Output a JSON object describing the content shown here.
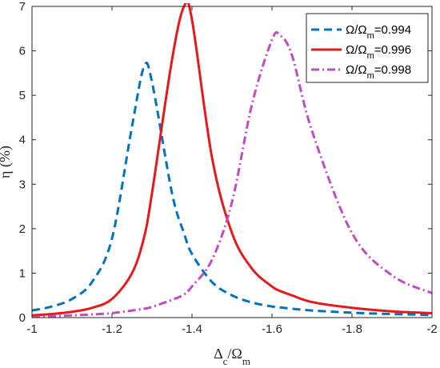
{
  "chart_data": {
    "type": "line",
    "xlabel": "Δc/Ωm",
    "xlabel_parts": {
      "main": "Δ",
      "sub1": "c",
      "mid": "/Ω",
      "sub2": "m"
    },
    "ylabel": "η (%)",
    "xlim": [
      -1,
      -2
    ],
    "ylim": [
      0,
      7
    ],
    "x_reversed": true,
    "xticks": [
      -1,
      -1.2,
      -1.4,
      -1.6,
      -1.8,
      -2
    ],
    "xtick_labels": [
      "-1",
      "-1.2",
      "-1.4",
      "-1.6",
      "-1.8",
      "-2"
    ],
    "yticks": [
      0,
      1,
      2,
      3,
      4,
      5,
      6,
      7
    ],
    "ytick_labels": [
      "0",
      "1",
      "2",
      "3",
      "4",
      "5",
      "6",
      "7"
    ],
    "grid": false,
    "legend_position": "top-right",
    "x": [
      -1.0,
      -1.05,
      -1.1,
      -1.15,
      -1.2,
      -1.25,
      -1.28,
      -1.3,
      -1.35,
      -1.38,
      -1.4,
      -1.45,
      -1.5,
      -1.55,
      -1.6,
      -1.62,
      -1.65,
      -1.7,
      -1.8,
      -1.9,
      -2.0
    ],
    "series": [
      {
        "name": "Ω/Ωm=0.994",
        "name_parts": {
          "a": "Ω/Ω",
          "sub": "m",
          "b": "=0.994"
        },
        "color": "#0072BD",
        "style": "dashed",
        "values": [
          0.16,
          0.25,
          0.42,
          0.8,
          1.78,
          4.3,
          5.64,
          5.3,
          2.8,
          1.9,
          1.43,
          0.8,
          0.5,
          0.34,
          0.25,
          0.23,
          0.2,
          0.16,
          0.11,
          0.08,
          0.06
        ]
      },
      {
        "name": "Ω/Ωm=0.996",
        "name_parts": {
          "a": "Ω/Ω",
          "sub": "m",
          "b": "=0.996"
        },
        "color": "#E41A1C",
        "style": "solid",
        "values": [
          0.05,
          0.08,
          0.13,
          0.22,
          0.42,
          1.0,
          1.8,
          2.8,
          5.8,
          7.0,
          6.7,
          3.6,
          1.9,
          1.1,
          0.7,
          0.6,
          0.5,
          0.35,
          0.22,
          0.14,
          0.1
        ]
      },
      {
        "name": "Ω/Ωm=0.998",
        "name_parts": {
          "a": "Ω/Ω",
          "sub": "m",
          "b": "=0.998"
        },
        "color": "#BF4DBF",
        "style": "dashdot",
        "values": [
          0.01,
          0.03,
          0.05,
          0.07,
          0.1,
          0.16,
          0.2,
          0.24,
          0.4,
          0.52,
          0.7,
          1.3,
          2.6,
          4.8,
          6.25,
          6.35,
          5.9,
          4.2,
          1.9,
          0.95,
          0.55
        ]
      }
    ]
  }
}
